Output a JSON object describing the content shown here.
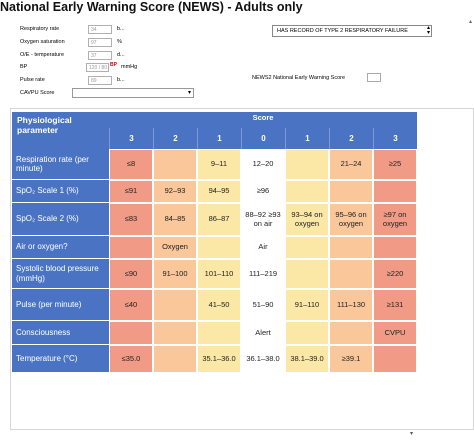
{
  "title": "National Early Warning Score (NEWS) - Adults only",
  "form": {
    "respiratory_rate": {
      "label": "Respiratory rate",
      "value": "34",
      "unit": "b..."
    },
    "oxygen_saturation": {
      "label": "Oxygen saturation",
      "value": "97",
      "unit": "%"
    },
    "temperature": {
      "label": "O/E - temperature",
      "value": "37",
      "unit": "d..."
    },
    "bp": {
      "label": "BP",
      "value": "120 / 80",
      "flag": "BP",
      "unit": "mmHg"
    },
    "pulse": {
      "label": "Pulse rate",
      "value": "89",
      "unit": "b..."
    },
    "avpu": {
      "label": "CAVPU Score",
      "value": ""
    },
    "resp_failure_select": "HAS RECORD OF TYPE 2 RESPIRATORY FAILURE",
    "news2_label": "NEWS2 National Early Warning Score",
    "news2_value": ""
  },
  "chart_data": {
    "type": "table",
    "header_param": "Physiological parameter",
    "header_score": "Score",
    "score_columns": [
      "3",
      "2",
      "1",
      "0",
      "1",
      "2",
      "3"
    ],
    "rows": [
      {
        "param": "Respiration rate (per minute)",
        "cells": [
          "≤8",
          "",
          "9–11",
          "12–20",
          "",
          "21–24",
          "≥25"
        ]
      },
      {
        "param": "SpO₂ Scale 1 (%)",
        "cells": [
          "≤91",
          "92–93",
          "94–95",
          "≥96",
          "",
          "",
          ""
        ]
      },
      {
        "param": "SpO₂ Scale 2 (%)",
        "cells": [
          "≤83",
          "84–85",
          "86–87",
          "88–92 ≥93 on air",
          "93–94 on oxygen",
          "95–96 on oxygen",
          "≥97 on oxygen"
        ]
      },
      {
        "param": "Air or oxygen?",
        "cells": [
          "",
          "Oxygen",
          "",
          "Air",
          "",
          "",
          ""
        ]
      },
      {
        "param": "Systolic blood pressure (mmHg)",
        "cells": [
          "≤90",
          "91–100",
          "101–110",
          "111–219",
          "",
          "",
          "≥220"
        ]
      },
      {
        "param": "Pulse (per minute)",
        "cells": [
          "≤40",
          "",
          "41–50",
          "51–90",
          "91–110",
          "111–130",
          "≥131"
        ]
      },
      {
        "param": "Consciousness",
        "cells": [
          "",
          "",
          "",
          "Alert",
          "",
          "",
          "CVPU"
        ]
      },
      {
        "param": "Temperature (°C)",
        "cells": [
          "≤35.0",
          "",
          "35.1–36.0",
          "36.1–38.0",
          "38.1–39.0",
          "≥39.1",
          ""
        ]
      }
    ],
    "column_colors": [
      "#f19a86",
      "#f9c79a",
      "#fbe7a6",
      "#ffffff",
      "#fbe7a6",
      "#f9c79a",
      "#f19a86"
    ],
    "header_color": "#4a74c3"
  }
}
